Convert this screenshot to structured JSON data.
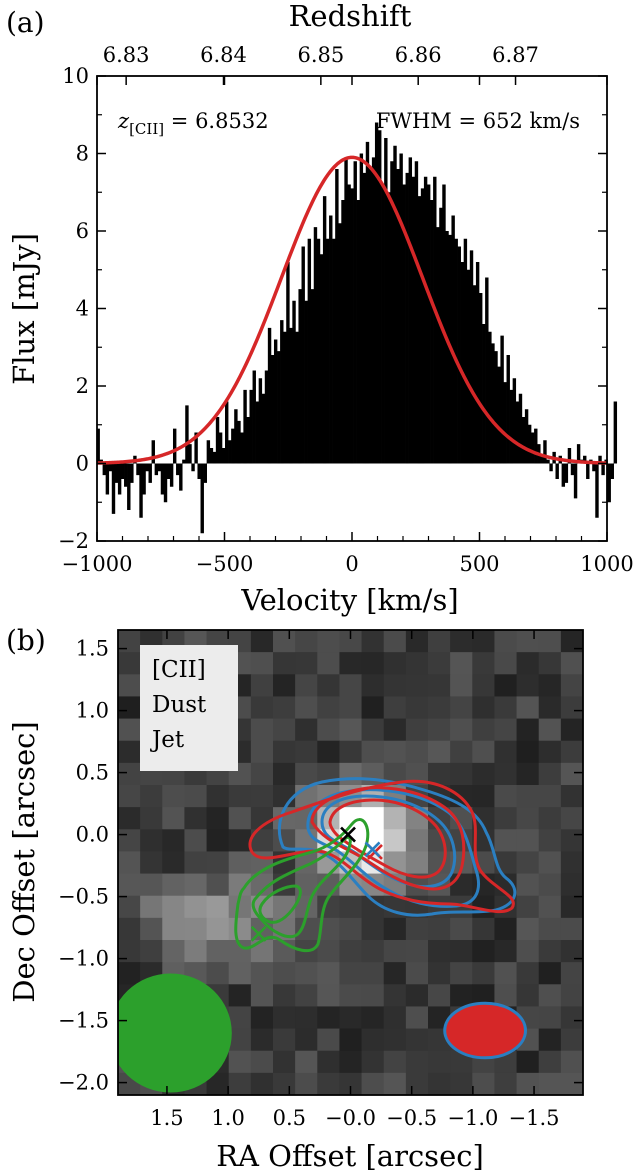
{
  "chart_data": [
    {
      "type": "bar",
      "panel_label": "(a)",
      "title": "",
      "xlabel": "Velocity [km/s]",
      "ylabel": "Flux [mJy]",
      "top_xlabel": "Redshift",
      "xlim": [
        -1000,
        1000
      ],
      "ylim": [
        -2,
        10
      ],
      "x_ticks": [
        -1000,
        -500,
        0,
        500,
        1000
      ],
      "x_tick_labels": [
        "−1000",
        "−500",
        "0",
        "500",
        "1000"
      ],
      "y_ticks": [
        -2,
        0,
        2,
        4,
        6,
        8,
        10
      ],
      "y_tick_labels": [
        "−2",
        "0",
        "2",
        "4",
        "6",
        "8",
        "10"
      ],
      "top_ticks": [
        6.83,
        6.84,
        6.85,
        6.86,
        6.87
      ],
      "top_tick_labels": [
        "6.83",
        "6.84",
        "6.85",
        "6.86",
        "6.87"
      ],
      "annotation_z_symbol": "z",
      "annotation_z_subscript": "[CII]",
      "annotation_z_value": " = 6.8532",
      "annotation_fwhm": "FWHM = 652 km/s",
      "bin_width": 12,
      "series": [
        {
          "type": "bar",
          "x_start": -996,
          "values": [
            0.9,
            0.1,
            -0.3,
            -0.8,
            -0.2,
            -1.3,
            -0.5,
            -0.8,
            -0.4,
            -0.6,
            -1.2,
            -0.5,
            0.2,
            -0.3,
            -1.4,
            -0.8,
            -0.2,
            -0.5,
            0.6,
            -0.3,
            -0.2,
            -0.8,
            -1.0,
            -0.4,
            -0.6,
            0.9,
            -0.3,
            -0.7,
            0.1,
            1.5,
            0.5,
            -0.2,
            0.8,
            -0.4,
            -1.8,
            -0.5,
            0.6,
            0.4,
            0.3,
            1.2,
            0.8,
            0.4,
            1.6,
            0.6,
            0.9,
            1.4,
            1.1,
            0.8,
            1.9,
            1.2,
            1.9,
            2.4,
            1.6,
            2.2,
            1.8,
            2.4,
            3.5,
            2.8,
            3.2,
            2.9,
            3.7,
            3.4,
            5.2,
            3.5,
            4.2,
            3.4,
            4.5,
            5.6,
            4.2,
            5.8,
            4.5,
            6.1,
            5.8,
            5.4,
            6.9,
            5.8,
            6.4,
            5.8,
            7.6,
            6.2,
            6.8,
            7.9,
            7.2,
            7.1,
            7.8,
            6.8,
            8.0,
            7.5,
            8.3,
            7.6,
            7.9,
            8.8,
            8.6,
            7.2,
            8.4,
            7.0,
            7.8,
            8.2,
            7.6,
            8.0,
            7.2,
            7.5,
            7.9,
            7.4,
            7.8,
            6.9,
            7.1,
            7.4,
            7.2,
            6.8,
            7.4,
            6.1,
            6.6,
            7.2,
            6.0,
            5.9,
            6.4,
            5.8,
            5.6,
            5.2,
            5.8,
            5.0,
            5.5,
            4.6,
            5.2,
            4.4,
            3.6,
            4.8,
            3.4,
            3.1,
            2.9,
            2.5,
            3.3,
            2.1,
            2.8,
            1.9,
            2.2,
            1.6,
            1.8,
            1.2,
            1.4,
            1.0,
            0.8,
            0.9,
            0.5,
            0.2,
            0.6,
            0.1,
            -0.2,
            0.3,
            -0.4,
            0.2,
            -0.6,
            -0.5,
            0.4,
            -0.3,
            -0.9,
            0.5,
            0.1,
            0.2,
            -0.4,
            0.1,
            -0.2,
            -1.4,
            0.2,
            -0.3,
            0.1,
            -1.0,
            -0.4,
            1.6
          ]
        },
        {
          "type": "line",
          "name": "",
          "color": "#d62728",
          "model": "gaussian",
          "amplitude": 7.9,
          "center": 0,
          "fwhm": 652
        }
      ]
    },
    {
      "type": "heatmap",
      "panel_label": "(b)",
      "title": "",
      "xlabel": "RA Offset [arcsec]",
      "ylabel": "Dec Offset [arcsec]",
      "xlim": [
        1.9,
        -1.9
      ],
      "ylim": [
        -2.1,
        1.65
      ],
      "x_ticks": [
        1.5,
        1.0,
        0.5,
        0.0,
        -0.5,
        -1.0,
        -1.5
      ],
      "x_tick_labels": [
        "1.5",
        "1.0",
        "0.5",
        "−0.0",
        "−0.5",
        "−1.0",
        "−1.5"
      ],
      "y_ticks": [
        1.5,
        1.0,
        0.5,
        0.0,
        -0.5,
        -1.0,
        -1.5,
        -2.0
      ],
      "y_tick_labels": [
        "1.5",
        "1.0",
        "0.5",
        "0.0",
        "−0.5",
        "−1.0",
        "−1.5",
        "−2.0"
      ],
      "colormap": "gray",
      "grid_rows": 21,
      "grid_cols": 21,
      "legend": {
        "placement": "upper-left",
        "entries": [
          {
            "label": "[CII]",
            "color": "#2b7fc1"
          },
          {
            "label": "Dust",
            "color": "#d62728"
          },
          {
            "label": "Jet",
            "color": "#2ca02c"
          }
        ]
      },
      "contour_colors": {
        "cii": "#2b7fc1",
        "dust": "#d62728",
        "jet": "#2ca02c"
      },
      "markers": [
        {
          "series": "black",
          "ra": 0.02,
          "dec": 0.0,
          "color": "#000000"
        },
        {
          "series": "dust",
          "ra": -0.2,
          "dec": -0.14,
          "color": "#d62728"
        },
        {
          "series": "cii",
          "ra": -0.18,
          "dec": -0.12,
          "color": "#2b7fc1"
        },
        {
          "series": "jet",
          "ra": 0.75,
          "dec": -0.8,
          "color": "#2ca02c"
        }
      ],
      "beams": [
        {
          "series": "jet",
          "ra": 1.47,
          "dec": -1.6,
          "major": 0.5,
          "minor": 0.48,
          "color": "#2ca02c"
        },
        {
          "series": "dust",
          "ra": -1.1,
          "dec": -1.58,
          "major": 0.33,
          "minor": 0.22,
          "color": "#d62728",
          "edge": "#2b7fc1"
        }
      ]
    }
  ]
}
